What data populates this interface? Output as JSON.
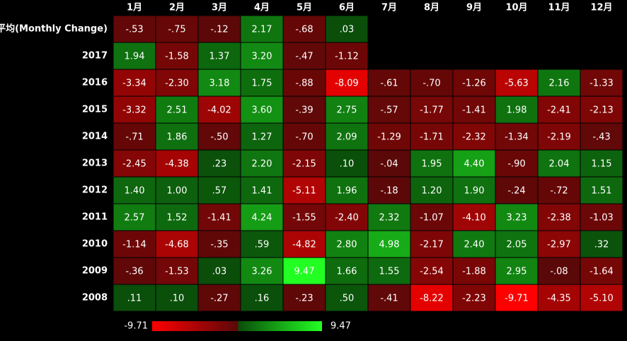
{
  "chart_data": {
    "type": "heatmap",
    "categories": [
      "1月",
      "2月",
      "3月",
      "4月",
      "5月",
      "6月",
      "7月",
      "8月",
      "9月",
      "10月",
      "11月",
      "12月"
    ],
    "rows": [
      "平均(Monthly Change)",
      "2017",
      "2016",
      "2015",
      "2014",
      "2013",
      "2012",
      "2011",
      "2010",
      "2009",
      "2008"
    ],
    "values": [
      [
        -0.53,
        -0.75,
        -0.12,
        2.17,
        -0.68,
        0.03,
        null,
        null,
        null,
        null,
        null,
        null
      ],
      [
        1.94,
        -1.58,
        1.37,
        3.2,
        -0.47,
        -1.12,
        null,
        null,
        null,
        null,
        null,
        null
      ],
      [
        -3.34,
        -2.3,
        3.18,
        1.75,
        -0.88,
        -8.09,
        -0.61,
        -0.7,
        -1.26,
        -5.63,
        2.16,
        -1.33
      ],
      [
        -3.32,
        2.51,
        -4.02,
        3.6,
        -0.39,
        2.75,
        -0.57,
        -1.77,
        -1.41,
        1.98,
        -2.41,
        -2.13
      ],
      [
        -0.71,
        1.86,
        -0.5,
        1.27,
        -0.7,
        2.09,
        -1.29,
        -1.71,
        -2.32,
        -1.34,
        -2.19,
        -0.43
      ],
      [
        -2.45,
        -4.38,
        0.23,
        2.2,
        -2.15,
        0.1,
        -0.04,
        1.95,
        4.4,
        -0.9,
        2.04,
        1.15
      ],
      [
        1.4,
        1.0,
        0.57,
        1.41,
        -5.11,
        1.96,
        -0.18,
        1.2,
        1.9,
        -0.24,
        -0.72,
        1.51
      ],
      [
        2.57,
        1.52,
        -1.41,
        4.24,
        -1.55,
        -2.4,
        2.32,
        -1.07,
        -4.1,
        3.23,
        -2.38,
        -1.03
      ],
      [
        -1.14,
        -4.68,
        -0.35,
        0.59,
        -4.82,
        2.8,
        4.98,
        -2.17,
        2.4,
        2.05,
        -2.97,
        0.32
      ],
      [
        -0.36,
        -1.53,
        0.03,
        3.26,
        9.47,
        1.66,
        1.55,
        -2.54,
        -1.88,
        2.95,
        -0.08,
        -1.64
      ],
      [
        0.11,
        0.1,
        -0.27,
        0.16,
        -0.23,
        0.5,
        -0.41,
        -8.22,
        -2.23,
        -9.71,
        -4.35,
        -5.1
      ]
    ],
    "value_labels": [
      [
        "-.53",
        "-.75",
        "-.12",
        "2.17",
        "-.68",
        ".03",
        null,
        null,
        null,
        null,
        null,
        null
      ],
      [
        "1.94",
        "-1.58",
        "1.37",
        "3.20",
        "-.47",
        "-1.12",
        null,
        null,
        null,
        null,
        null,
        null
      ],
      [
        "-3.34",
        "-2.30",
        "3.18",
        "1.75",
        "-.88",
        "-8.09",
        "-.61",
        "-.70",
        "-1.26",
        "-5.63",
        "2.16",
        "-1.33"
      ],
      [
        "-3.32",
        "2.51",
        "-4.02",
        "3.60",
        "-.39",
        "2.75",
        "-.57",
        "-1.77",
        "-1.41",
        "1.98",
        "-2.41",
        "-2.13"
      ],
      [
        "-.71",
        "1.86",
        "-.50",
        "1.27",
        "-.70",
        "2.09",
        "-1.29",
        "-1.71",
        "-2.32",
        "-1.34",
        "-2.19",
        "-.43"
      ],
      [
        "-2.45",
        "-4.38",
        ".23",
        "2.20",
        "-2.15",
        ".10",
        "-.04",
        "1.95",
        "4.40",
        "-.90",
        "2.04",
        "1.15"
      ],
      [
        "1.40",
        "1.00",
        ".57",
        "1.41",
        "-5.11",
        "1.96",
        "-.18",
        "1.20",
        "1.90",
        "-.24",
        "-.72",
        "1.51"
      ],
      [
        "2.57",
        "1.52",
        "-1.41",
        "4.24",
        "-1.55",
        "-2.40",
        "2.32",
        "-1.07",
        "-4.10",
        "3.23",
        "-2.38",
        "-1.03"
      ],
      [
        "-1.14",
        "-4.68",
        "-.35",
        ".59",
        "-4.82",
        "2.80",
        "4.98",
        "-2.17",
        "2.40",
        "2.05",
        "-2.97",
        ".32"
      ],
      [
        "-.36",
        "-1.53",
        ".03",
        "3.26",
        "9.47",
        "1.66",
        "1.55",
        "-2.54",
        "-1.88",
        "2.95",
        "-.08",
        "-1.64"
      ],
      [
        ".11",
        ".10",
        "-.27",
        ".16",
        "-.23",
        ".50",
        "-.41",
        "-8.22",
        "-2.23",
        "-9.71",
        "-4.35",
        "-5.10"
      ]
    ],
    "colorbar": {
      "min": -9.71,
      "max": 9.47
    },
    "colorscale": {
      "negative_max": "#ff0000",
      "negative_zero": "#5a0808",
      "positive_zero": "#0a4d0a",
      "positive_max": "#22ff22"
    }
  }
}
